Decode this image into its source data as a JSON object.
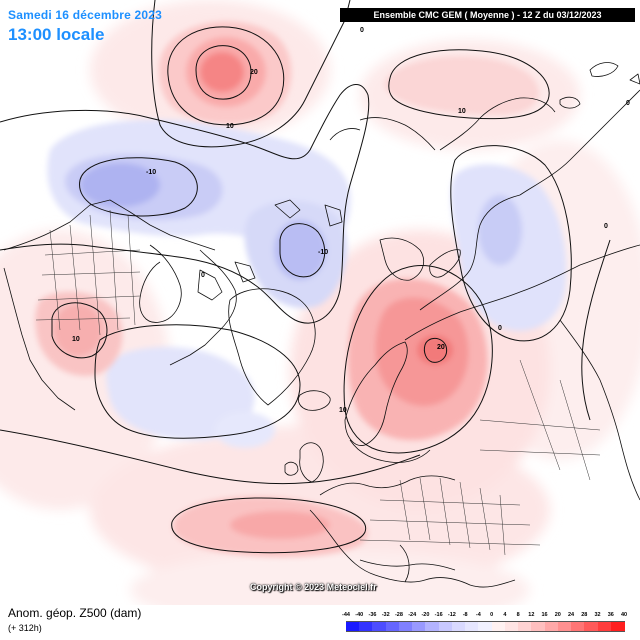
{
  "header": {
    "date": "Samedi 16 décembre 2023",
    "time": "13:00 locale",
    "model": "Ensemble CMC GEM  ( Moyenne )  -  12 Z du 03/12/2023"
  },
  "footer": {
    "copyright": "Copyright © 2023 Meteociel.fr",
    "variable": "Anom. géop. Z500 (dam)",
    "lead": "(+ 312h)"
  },
  "map": {
    "contour_labels": [
      {
        "text": "20",
        "sign": "pos"
      },
      {
        "text": "10",
        "sign": "pos"
      },
      {
        "text": "0",
        "sign": "zero"
      },
      {
        "text": "-10",
        "sign": "neg"
      },
      {
        "text": "-10",
        "sign": "neg"
      },
      {
        "text": "10",
        "sign": "pos"
      },
      {
        "text": "20",
        "sign": "pos"
      },
      {
        "text": "10",
        "sign": "pos"
      },
      {
        "text": "0",
        "sign": "zero"
      },
      {
        "text": "0",
        "sign": "zero"
      },
      {
        "text": "10",
        "sign": "pos"
      },
      {
        "text": "0",
        "sign": "zero"
      },
      {
        "text": "0",
        "sign": "zero"
      }
    ]
  },
  "legend": {
    "ticks": [
      "-44",
      "-40",
      "-36",
      "-32",
      "-28",
      "-24",
      "-20",
      "-16",
      "-12",
      "-8",
      "-4",
      "0",
      "4",
      "8",
      "12",
      "16",
      "20",
      "24",
      "28",
      "32",
      "36",
      "40"
    ],
    "colors": [
      "#1a1aff",
      "#3333ff",
      "#4d4dff",
      "#6666ff",
      "#8080ff",
      "#9999ff",
      "#b3b3ff",
      "#c8c8ff",
      "#d9d9ff",
      "#e6e6ff",
      "#f1f1ff",
      "#fff1f1",
      "#ffe4e4",
      "#ffd3d3",
      "#ffbfbf",
      "#ffa8a8",
      "#ff9090",
      "#ff7575",
      "#ff5a5a",
      "#ff3d3d",
      "#ff1f1f"
    ]
  }
}
